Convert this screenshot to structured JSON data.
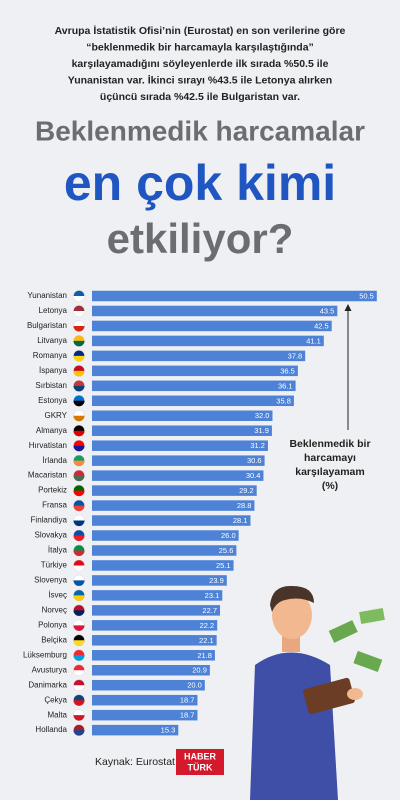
{
  "intro": [
    "Avrupa İstatistik Ofisi’nin (Eurostat) en son verilerine göre",
    "“beklenmedik bir harcamayla karşılaştığında”",
    "karşılayamadığını söyleyenlerde ilk sırada %50.5 ile",
    "Yunanistan var. İkinci sırayı %43.5 ile Letonya alırken",
    "üçüncü sırada %42.5 ile Bulgaristan var."
  ],
  "headline": [
    "Beklenmedik harcamalar",
    "en çok kimi",
    "etkiliyor?"
  ],
  "chart_data": {
    "type": "bar",
    "orientation": "horizontal",
    "color": "#4d82d6",
    "categories": [
      "Yunanistan",
      "Letonya",
      "Bulgaristan",
      "Litvanya",
      "Romanya",
      "İspanya",
      "Sırbistan",
      "Estonya",
      "GKRY",
      "Almanya",
      "Hırvatistan",
      "İrlanda",
      "Macaristan",
      "Portekiz",
      "Fransa",
      "Finlandiya",
      "Slovakya",
      "İtalya",
      "Türkiye",
      "Slovenya",
      "İsveç",
      "Norveç",
      "Polonya",
      "Belçika",
      "Lüksemburg",
      "Avusturya",
      "Danimarka",
      "Çekya",
      "Malta",
      "Hollanda"
    ],
    "values": [
      50.5,
      43.5,
      42.5,
      41.1,
      37.8,
      36.5,
      36.1,
      35.8,
      32.0,
      31.9,
      31.2,
      30.6,
      30.4,
      29.2,
      28.8,
      28.1,
      26.0,
      25.6,
      25.1,
      23.9,
      23.1,
      22.7,
      22.2,
      22.1,
      21.8,
      20.9,
      20.0,
      18.7,
      18.7,
      15.3
    ],
    "value_labels": [
      "50.5",
      "43.5",
      "42.5",
      "41.1",
      "37.8",
      "36.5",
      "36.1",
      "35.8",
      "32.0",
      "31.9",
      "31.2",
      "30.6",
      "30.4",
      "29.2",
      "28.8",
      "28.1",
      "26.0",
      "25.6",
      "25.1",
      "23.9",
      "23.1",
      "22.7",
      "22.2",
      "22.1",
      "21.8",
      "20.9",
      "20.0",
      "18.7",
      "18.7",
      "15.3"
    ],
    "annotation": [
      "Beklenmedik bir",
      "harcamayı",
      "karşılayamam",
      "(%)"
    ]
  },
  "source": "Kaynak: Eurostat",
  "logo": [
    "HABER",
    "TÜRK"
  ]
}
